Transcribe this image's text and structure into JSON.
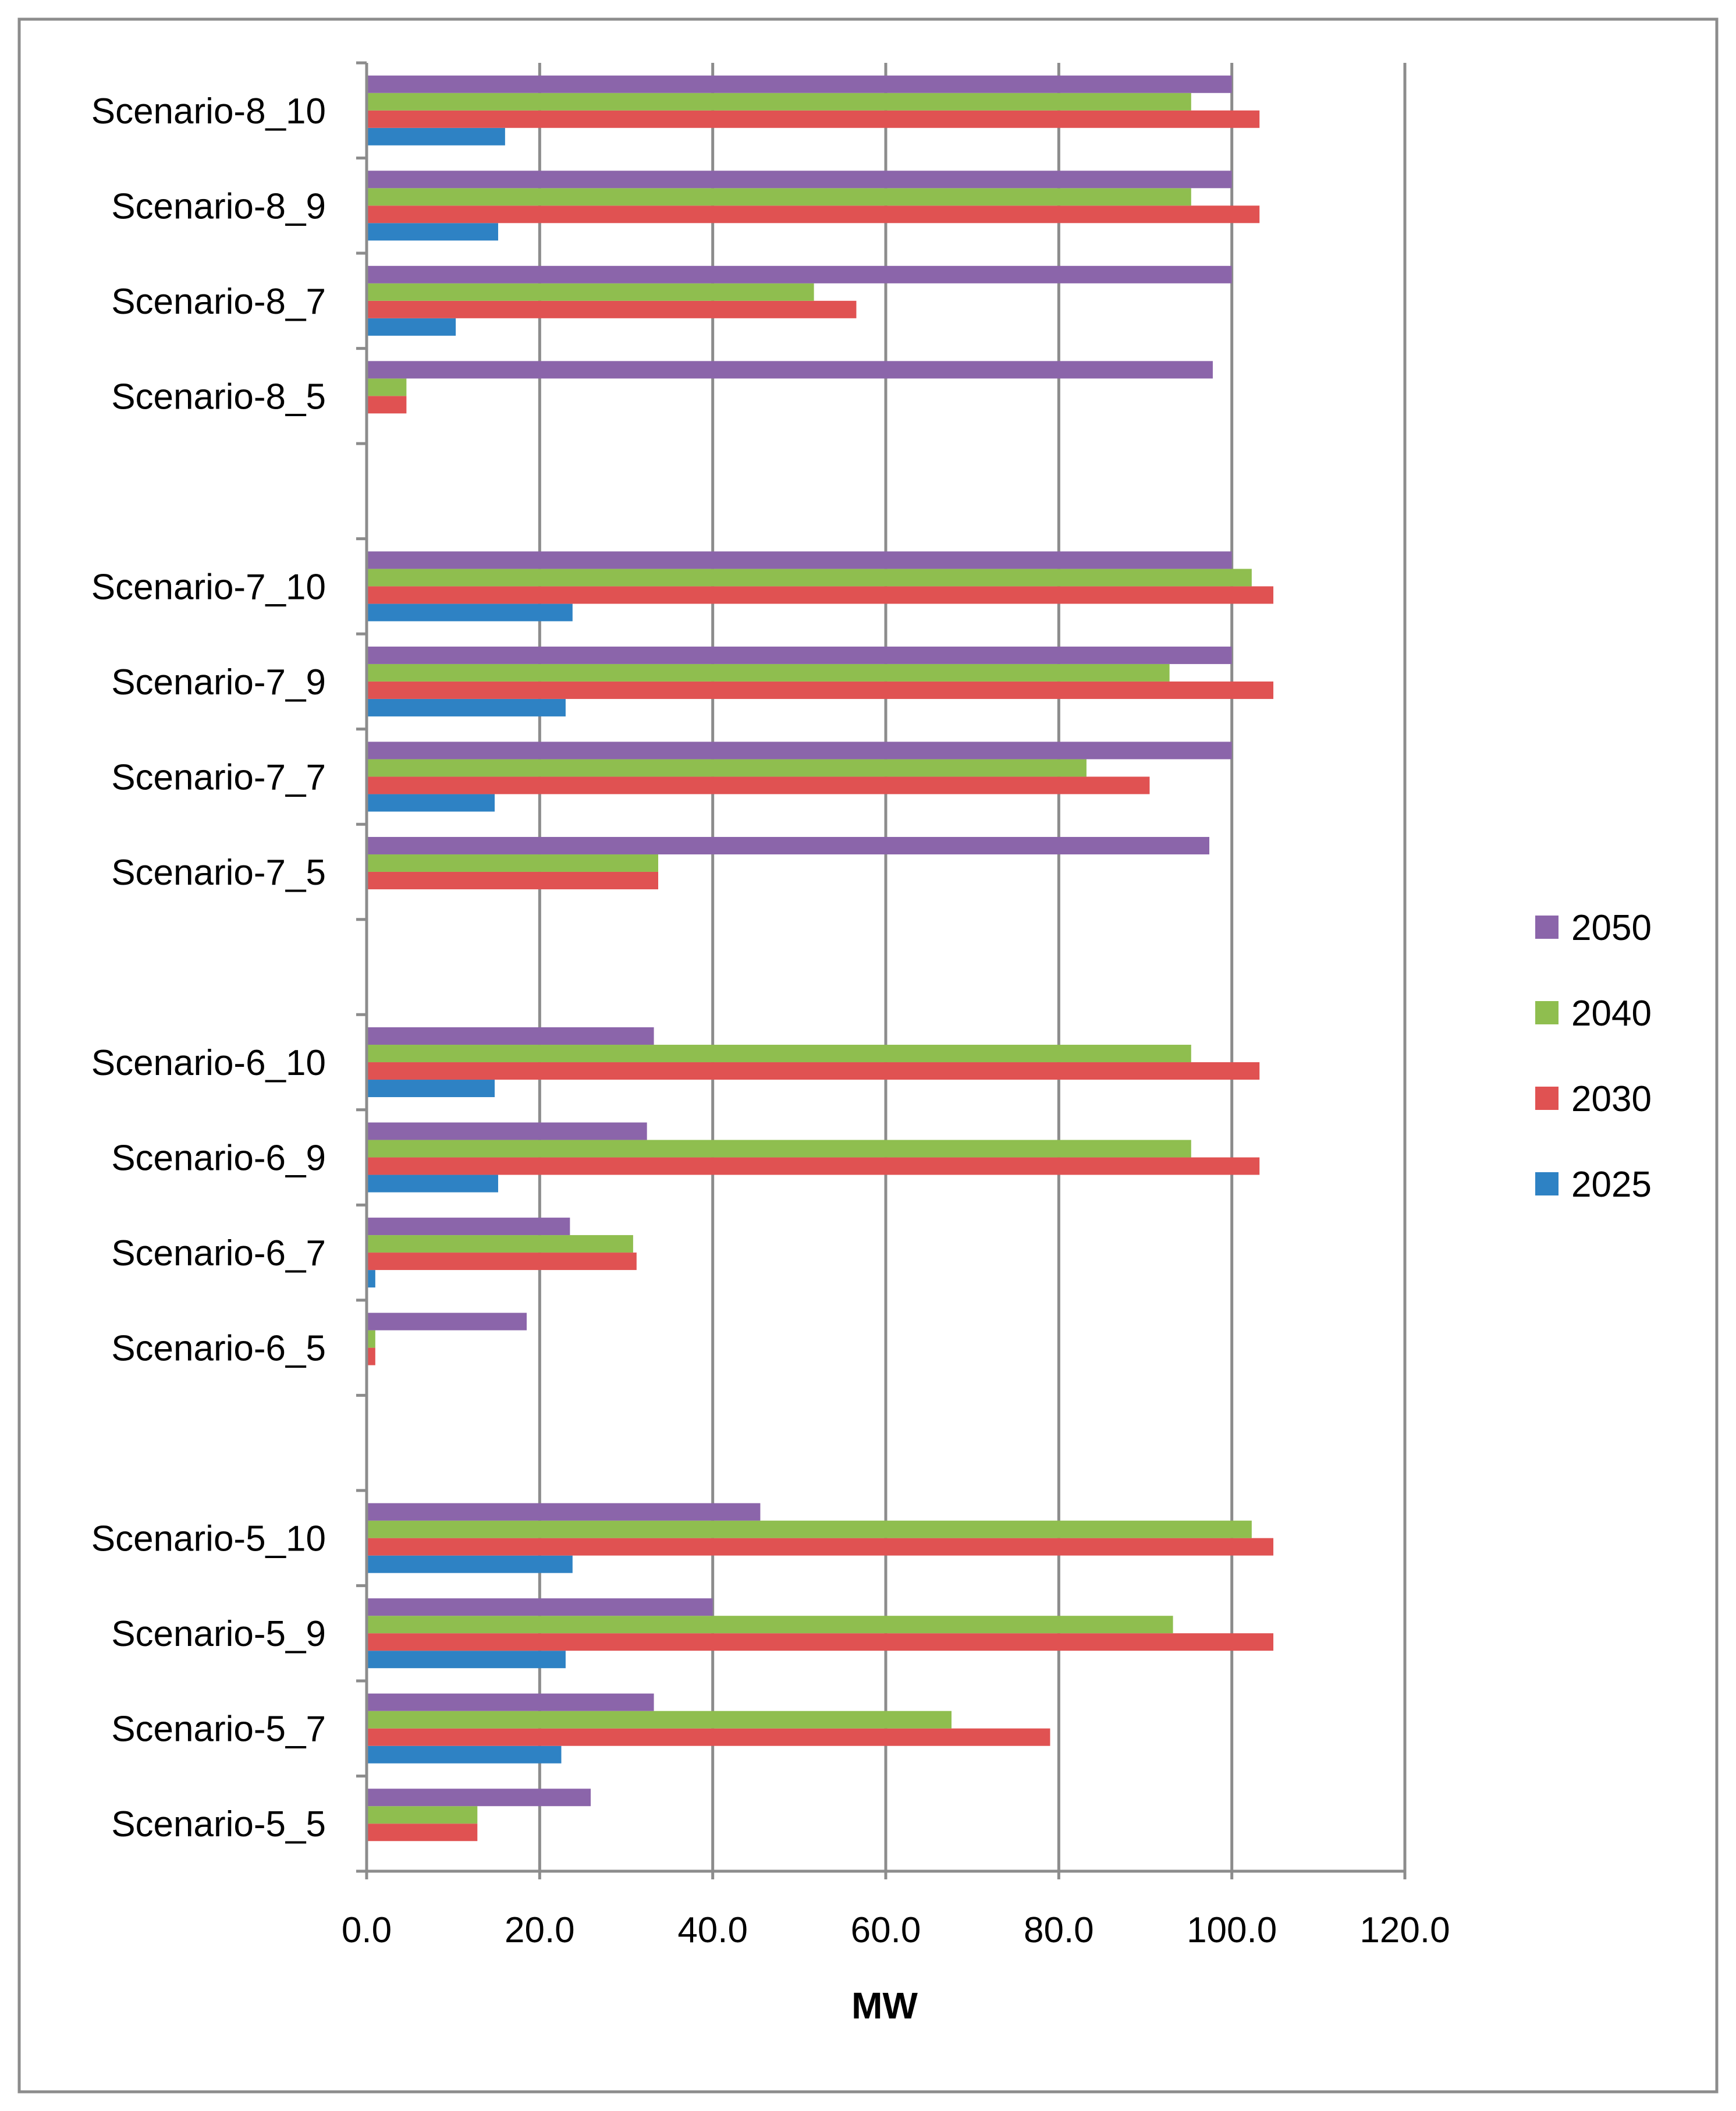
{
  "chart_data": {
    "type": "bar",
    "orientation": "horizontal",
    "title": "",
    "xlabel": "MW",
    "ylabel": "",
    "xlim": [
      0,
      120
    ],
    "x_ticks": [
      "0.0",
      "20.0",
      "40.0",
      "60.0",
      "80.0",
      "100.0",
      "120.0"
    ],
    "grid": "vertical",
    "legend_position": "right",
    "categories": [
      "Scenario-5_5",
      "Scenario-5_7",
      "Scenario-5_9",
      "Scenario-5_10",
      "",
      "Scenario-6_5",
      "Scenario-6_7",
      "Scenario-6_9",
      "Scenario-6_10",
      "",
      "Scenario-7_5",
      "Scenario-7_7",
      "Scenario-7_9",
      "Scenario-7_10",
      "",
      "Scenario-8_5",
      "Scenario-8_7",
      "Scenario-8_9",
      "Scenario-8_10"
    ],
    "series": [
      {
        "name": "2025",
        "color": "#2e82c4",
        "values": [
          0,
          22.5,
          23,
          23.8,
          null,
          0,
          1,
          15.2,
          14.8,
          null,
          0,
          14.8,
          23,
          23.8,
          null,
          0,
          10.3,
          15.2,
          16
        ]
      },
      {
        "name": "2030",
        "color": "#e05252",
        "values": [
          12.8,
          79,
          104.8,
          104.8,
          null,
          1,
          31.2,
          103.2,
          103.2,
          null,
          33.7,
          90.5,
          104.8,
          104.8,
          null,
          4.6,
          56.6,
          103.2,
          103.2
        ]
      },
      {
        "name": "2040",
        "color": "#8fbe4f",
        "values": [
          12.8,
          67.6,
          93.2,
          102.3,
          null,
          1,
          30.8,
          95.3,
          95.3,
          null,
          33.7,
          83.2,
          92.8,
          102.3,
          null,
          4.6,
          51.7,
          95.3,
          95.3
        ]
      },
      {
        "name": "2050",
        "color": "#8b65aa",
        "values": [
          25.9,
          33.2,
          40,
          45.5,
          null,
          18.5,
          23.5,
          32.4,
          33.2,
          null,
          97.4,
          100,
          100,
          100,
          null,
          97.8,
          100,
          100,
          100
        ]
      }
    ],
    "legend_order": [
      "2050",
      "2040",
      "2030",
      "2025"
    ]
  }
}
